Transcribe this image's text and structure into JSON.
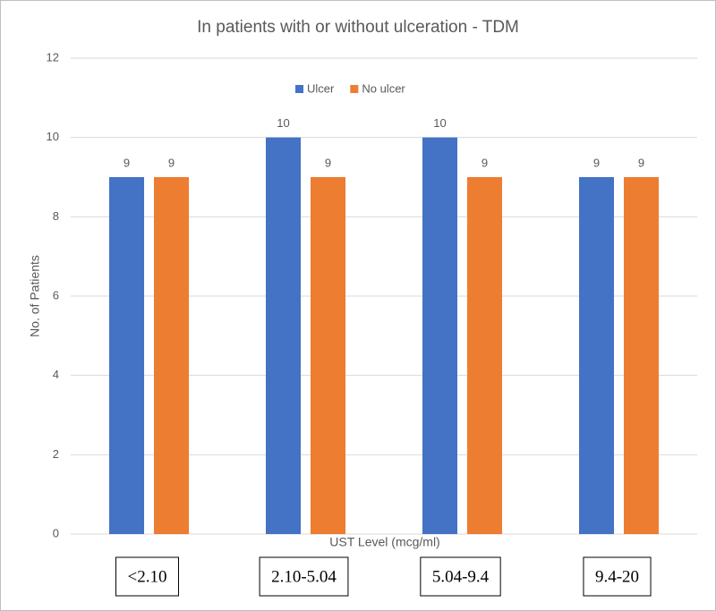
{
  "chart_data": {
    "type": "bar",
    "title": "In patients with or without ulceration - TDM",
    "x_label": "UST Level (mcg/ml)",
    "y_label": "No. of Patients",
    "categories": [
      "<2.10",
      "2.10-5.04",
      "5.04-9.4",
      "9.4-20"
    ],
    "series": [
      {
        "name": "Ulcer",
        "color": "#4472c4",
        "values": [
          9,
          10,
          10,
          9
        ]
      },
      {
        "name": "No ulcer",
        "color": "#ed7d31",
        "values": [
          9,
          9,
          9,
          9
        ]
      }
    ],
    "ylim": [
      0,
      12
    ],
    "yticks": [
      0,
      2,
      4,
      6,
      8,
      10,
      12
    ],
    "grid": true,
    "legend": "top"
  }
}
